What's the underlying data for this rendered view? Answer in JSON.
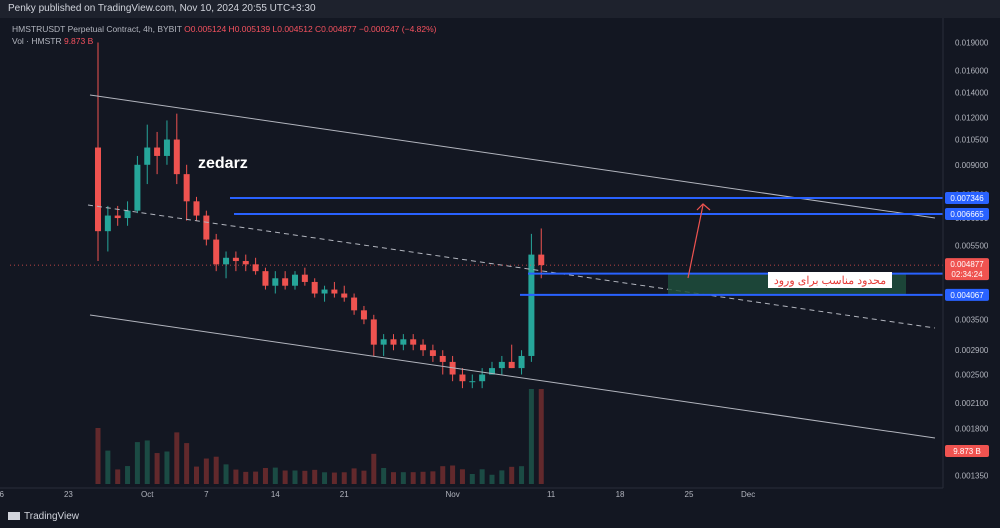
{
  "header": {
    "published": "Penky published on TradingView.com, Nov 10, 2024 20:55 UTC+3:30",
    "symbol": "HMSTRUSDT Perpetual Contract, 4h, BYBIT",
    "ohlc": "O0.005124 H0.005139 L0.004512 C0.004877 −0.000247 (−4.82%)",
    "vol_label": "Vol · HMSTR",
    "vol_value": "9.873 B",
    "currency": "USDT"
  },
  "footer": {
    "brand": "TradingView"
  },
  "colors": {
    "up": "#26a69a",
    "down": "#ef5350",
    "level": "#2962ff",
    "zone": "#1e4d3c",
    "bg": "#131722"
  },
  "chart_data": {
    "type": "candlestick",
    "y_scale": "log",
    "ylim": [
      0.00125,
      0.0205
    ],
    "y_ticks": [
      "0.019000",
      "0.016000",
      "0.014000",
      "0.012000",
      "0.010500",
      "0.009000",
      "0.007500",
      "0.006500",
      "0.005500",
      "0.004877",
      "0.004629",
      "0.004067",
      "0.003500",
      "0.002900",
      "0.002500",
      "0.002100",
      "0.001800",
      "0.001550",
      "0.001350"
    ],
    "x_ticks": [
      "16",
      "23",
      "Oct",
      "7",
      "14",
      "21",
      "Nov",
      "11",
      "18",
      "25",
      "Dec"
    ],
    "candles_daily": [
      {
        "d": "Sep 26",
        "o": 0.01,
        "h": 0.019,
        "l": 0.005,
        "c": 0.006
      },
      {
        "d": "Sep 27",
        "o": 0.006,
        "h": 0.007,
        "l": 0.0053,
        "c": 0.0066
      },
      {
        "d": "Sep 28",
        "o": 0.0066,
        "h": 0.007,
        "l": 0.0062,
        "c": 0.0065
      },
      {
        "d": "Sep 29",
        "o": 0.0065,
        "h": 0.0072,
        "l": 0.0062,
        "c": 0.0068
      },
      {
        "d": "Sep 30",
        "o": 0.0068,
        "h": 0.0095,
        "l": 0.0067,
        "c": 0.009
      },
      {
        "d": "Oct 1",
        "o": 0.009,
        "h": 0.0115,
        "l": 0.008,
        "c": 0.01
      },
      {
        "d": "Oct 2",
        "o": 0.01,
        "h": 0.011,
        "l": 0.0085,
        "c": 0.0095
      },
      {
        "d": "Oct 3",
        "o": 0.0095,
        "h": 0.0118,
        "l": 0.009,
        "c": 0.0105
      },
      {
        "d": "Oct 4",
        "o": 0.0105,
        "h": 0.0123,
        "l": 0.008,
        "c": 0.0085
      },
      {
        "d": "Oct 5",
        "o": 0.0085,
        "h": 0.009,
        "l": 0.0064,
        "c": 0.0072
      },
      {
        "d": "Oct 6",
        "o": 0.0072,
        "h": 0.0074,
        "l": 0.0064,
        "c": 0.0066
      },
      {
        "d": "Oct 7",
        "o": 0.0066,
        "h": 0.0068,
        "l": 0.0055,
        "c": 0.0057
      },
      {
        "d": "Oct 8",
        "o": 0.0057,
        "h": 0.0059,
        "l": 0.0047,
        "c": 0.0049
      },
      {
        "d": "Oct 9",
        "o": 0.0049,
        "h": 0.0053,
        "l": 0.0045,
        "c": 0.0051
      },
      {
        "d": "Oct 10",
        "o": 0.0051,
        "h": 0.0053,
        "l": 0.0047,
        "c": 0.005
      },
      {
        "d": "Oct 11",
        "o": 0.005,
        "h": 0.0052,
        "l": 0.0047,
        "c": 0.0049
      },
      {
        "d": "Oct 12",
        "o": 0.0049,
        "h": 0.0051,
        "l": 0.0046,
        "c": 0.0047
      },
      {
        "d": "Oct 13",
        "o": 0.0047,
        "h": 0.0048,
        "l": 0.0042,
        "c": 0.0043
      },
      {
        "d": "Oct 14",
        "o": 0.0043,
        "h": 0.0047,
        "l": 0.0041,
        "c": 0.0045
      },
      {
        "d": "Oct 15",
        "o": 0.0045,
        "h": 0.0047,
        "l": 0.0042,
        "c": 0.0043
      },
      {
        "d": "Oct 16",
        "o": 0.0043,
        "h": 0.0047,
        "l": 0.0042,
        "c": 0.0046
      },
      {
        "d": "Oct 17",
        "o": 0.0046,
        "h": 0.0048,
        "l": 0.0043,
        "c": 0.0044
      },
      {
        "d": "Oct 18",
        "o": 0.0044,
        "h": 0.0045,
        "l": 0.004,
        "c": 0.0041
      },
      {
        "d": "Oct 19",
        "o": 0.0041,
        "h": 0.0043,
        "l": 0.0039,
        "c": 0.0042
      },
      {
        "d": "Oct 20",
        "o": 0.0042,
        "h": 0.0044,
        "l": 0.004,
        "c": 0.0041
      },
      {
        "d": "Oct 21",
        "o": 0.0041,
        "h": 0.0043,
        "l": 0.0039,
        "c": 0.004
      },
      {
        "d": "Oct 22",
        "o": 0.004,
        "h": 0.0041,
        "l": 0.0036,
        "c": 0.0037
      },
      {
        "d": "Oct 23",
        "o": 0.0037,
        "h": 0.0038,
        "l": 0.0034,
        "c": 0.0035
      },
      {
        "d": "Oct 24",
        "o": 0.0035,
        "h": 0.0036,
        "l": 0.0028,
        "c": 0.003
      },
      {
        "d": "Oct 25",
        "o": 0.003,
        "h": 0.0032,
        "l": 0.0028,
        "c": 0.0031
      },
      {
        "d": "Oct 26",
        "o": 0.0031,
        "h": 0.0032,
        "l": 0.0029,
        "c": 0.003
      },
      {
        "d": "Oct 27",
        "o": 0.003,
        "h": 0.0032,
        "l": 0.0029,
        "c": 0.0031
      },
      {
        "d": "Oct 28",
        "o": 0.0031,
        "h": 0.0032,
        "l": 0.0029,
        "c": 0.003
      },
      {
        "d": "Oct 29",
        "o": 0.003,
        "h": 0.0031,
        "l": 0.0028,
        "c": 0.0029
      },
      {
        "d": "Oct 30",
        "o": 0.0029,
        "h": 0.003,
        "l": 0.0027,
        "c": 0.0028
      },
      {
        "d": "Oct 31",
        "o": 0.0028,
        "h": 0.0029,
        "l": 0.0025,
        "c": 0.0027
      },
      {
        "d": "Nov 1",
        "o": 0.0027,
        "h": 0.0028,
        "l": 0.0024,
        "c": 0.0025
      },
      {
        "d": "Nov 2",
        "o": 0.0025,
        "h": 0.0026,
        "l": 0.0023,
        "c": 0.0024
      },
      {
        "d": "Nov 3",
        "o": 0.0024,
        "h": 0.0025,
        "l": 0.0023,
        "c": 0.0024
      },
      {
        "d": "Nov 4",
        "o": 0.0024,
        "h": 0.0026,
        "l": 0.0023,
        "c": 0.0025
      },
      {
        "d": "Nov 5",
        "o": 0.0025,
        "h": 0.0027,
        "l": 0.0025,
        "c": 0.0026
      },
      {
        "d": "Nov 6",
        "o": 0.0026,
        "h": 0.0028,
        "l": 0.0025,
        "c": 0.0027
      },
      {
        "d": "Nov 7",
        "o": 0.0027,
        "h": 0.003,
        "l": 0.0026,
        "c": 0.0026
      },
      {
        "d": "Nov 8",
        "o": 0.0026,
        "h": 0.0029,
        "l": 0.0025,
        "c": 0.0028
      },
      {
        "d": "Nov 9",
        "o": 0.0028,
        "h": 0.0059,
        "l": 0.0027,
        "c": 0.0052
      },
      {
        "d": "Nov 10",
        "o": 0.0052,
        "h": 0.0061,
        "l": 0.0045,
        "c": 0.004877
      }
    ],
    "levels": [
      {
        "label": "0.007346",
        "value": 0.007346
      },
      {
        "label": "0.006665",
        "value": 0.006665
      },
      {
        "label": "0.004629",
        "value": 0.004629
      },
      {
        "label": "0.004067",
        "value": 0.004067
      }
    ],
    "last_price": {
      "label": "0.004877",
      "value": 0.004877,
      "countdown": "02:34:24"
    },
    "volume_label": "9.873 B",
    "annotations": {
      "watermark": "zedarz",
      "entry_zone_text": "محدود مناسب برای ورود",
      "entry_zone": [
        0.004067,
        0.004629
      ]
    }
  }
}
